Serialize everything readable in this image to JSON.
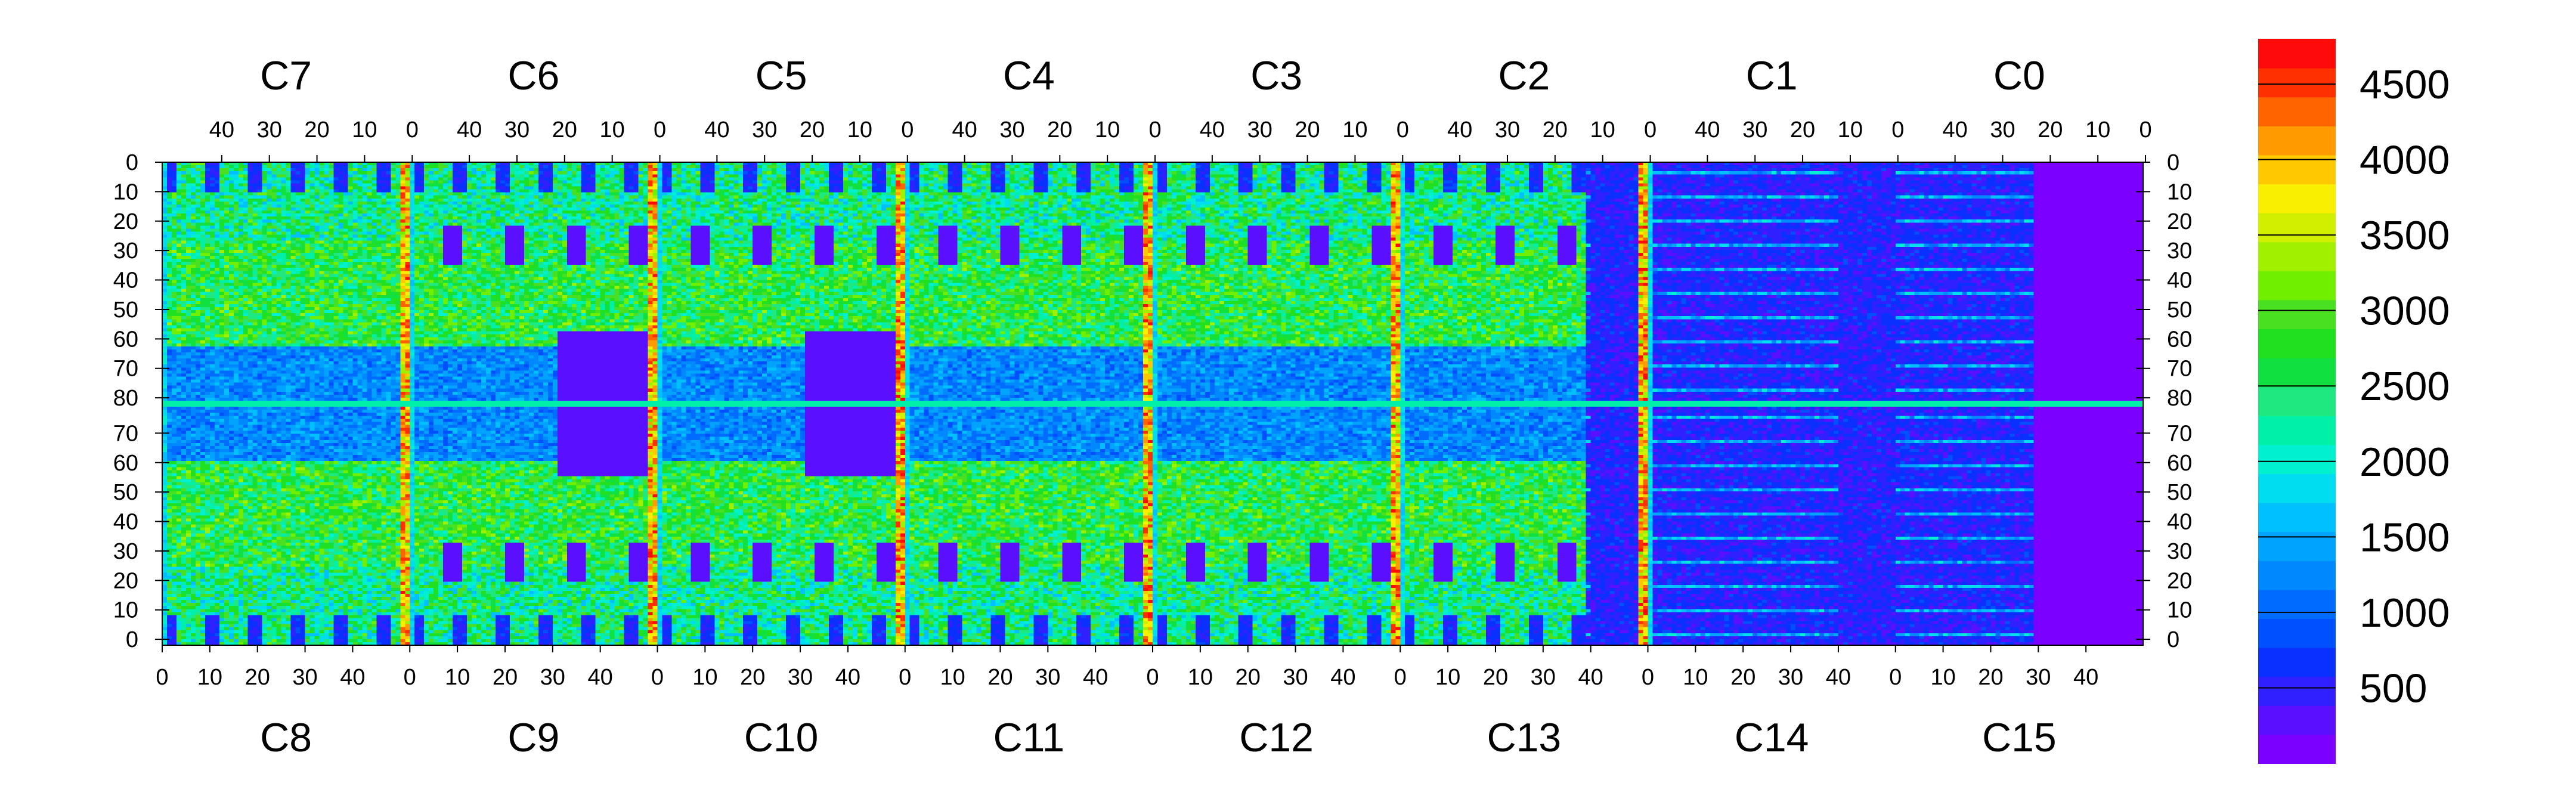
{
  "chart_data": {
    "type": "heatmap",
    "top_chip_labels": [
      "C7",
      "C6",
      "C5",
      "C4",
      "C3",
      "C2",
      "C1",
      "C0"
    ],
    "bottom_chip_labels": [
      "C8",
      "C9",
      "C10",
      "C11",
      "C12",
      "C13",
      "C14",
      "C15"
    ],
    "top_x_tick_labels": [
      "40",
      "30",
      "20",
      "10",
      "0"
    ],
    "bottom_x_tick_labels": [
      "0",
      "10",
      "20",
      "30",
      "40"
    ],
    "y_tick_labels_top_half": [
      "0",
      "10",
      "20",
      "30",
      "40",
      "50",
      "60",
      "70",
      "80"
    ],
    "y_tick_labels_bottom_half": [
      "80",
      "70",
      "60",
      "50",
      "40",
      "30",
      "20",
      "10",
      "0"
    ],
    "chip_columns": 52,
    "rows_per_half": 80,
    "z_range": [
      0,
      4800
    ],
    "colorbar_ticks": [
      500,
      1000,
      1500,
      2000,
      2500,
      3000,
      3500,
      4000,
      4500
    ],
    "colorbar_tick_labels": [
      "500",
      "1000",
      "1500",
      "2000",
      "2500",
      "3000",
      "3500",
      "4000",
      "4500"
    ],
    "colorbar_bands": [
      "#7b00ff",
      "#5a10ff",
      "#3020ff",
      "#0a30ff",
      "#0050ff",
      "#006cff",
      "#0088ff",
      "#00a4ff",
      "#00c0ff",
      "#00dcf0",
      "#00f0d0",
      "#00f0a8",
      "#20e880",
      "#10e040",
      "#20e020",
      "#48e020",
      "#70f000",
      "#a0f000",
      "#d0f000",
      "#f8f000",
      "#ffc800",
      "#ff9a00",
      "#ff6400",
      "#ff3000",
      "#ff0a0a"
    ],
    "grid": false,
    "legend_placement": "right"
  }
}
